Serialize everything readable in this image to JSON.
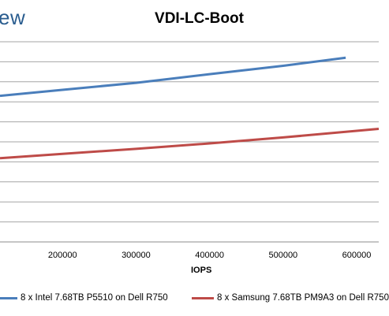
{
  "header": {
    "logo_fragment": "ew"
  },
  "chart_data": {
    "type": "line",
    "title": "VDI-LC-Boot",
    "xlabel": "IOPS",
    "ylabel": "",
    "x_ticks": [
      200000,
      300000,
      400000,
      500000,
      600000
    ],
    "x_tick_labels": [
      "200000",
      "300000",
      "400000",
      "500000",
      "600000"
    ],
    "xlim": [
      115000,
      630000
    ],
    "grid": true,
    "legend_position": "bottom",
    "series": [
      {
        "name": "8 x Intel 7.68TB P5510 on Dell R750",
        "color": "#4a7ebb",
        "points": [
          [
            115000,
            0.73
          ],
          [
            200000,
            0.76
          ],
          [
            300000,
            0.795
          ],
          [
            400000,
            0.838
          ],
          [
            500000,
            0.88
          ],
          [
            585000,
            0.92
          ]
        ]
      },
      {
        "name": "8 x Samsung 7.68TB PM9A3 on Dell R750",
        "color": "#be4b48",
        "points": [
          [
            115000,
            0.418
          ],
          [
            200000,
            0.44
          ],
          [
            300000,
            0.465
          ],
          [
            400000,
            0.492
          ],
          [
            500000,
            0.522
          ],
          [
            630000,
            0.565
          ]
        ]
      }
    ]
  }
}
